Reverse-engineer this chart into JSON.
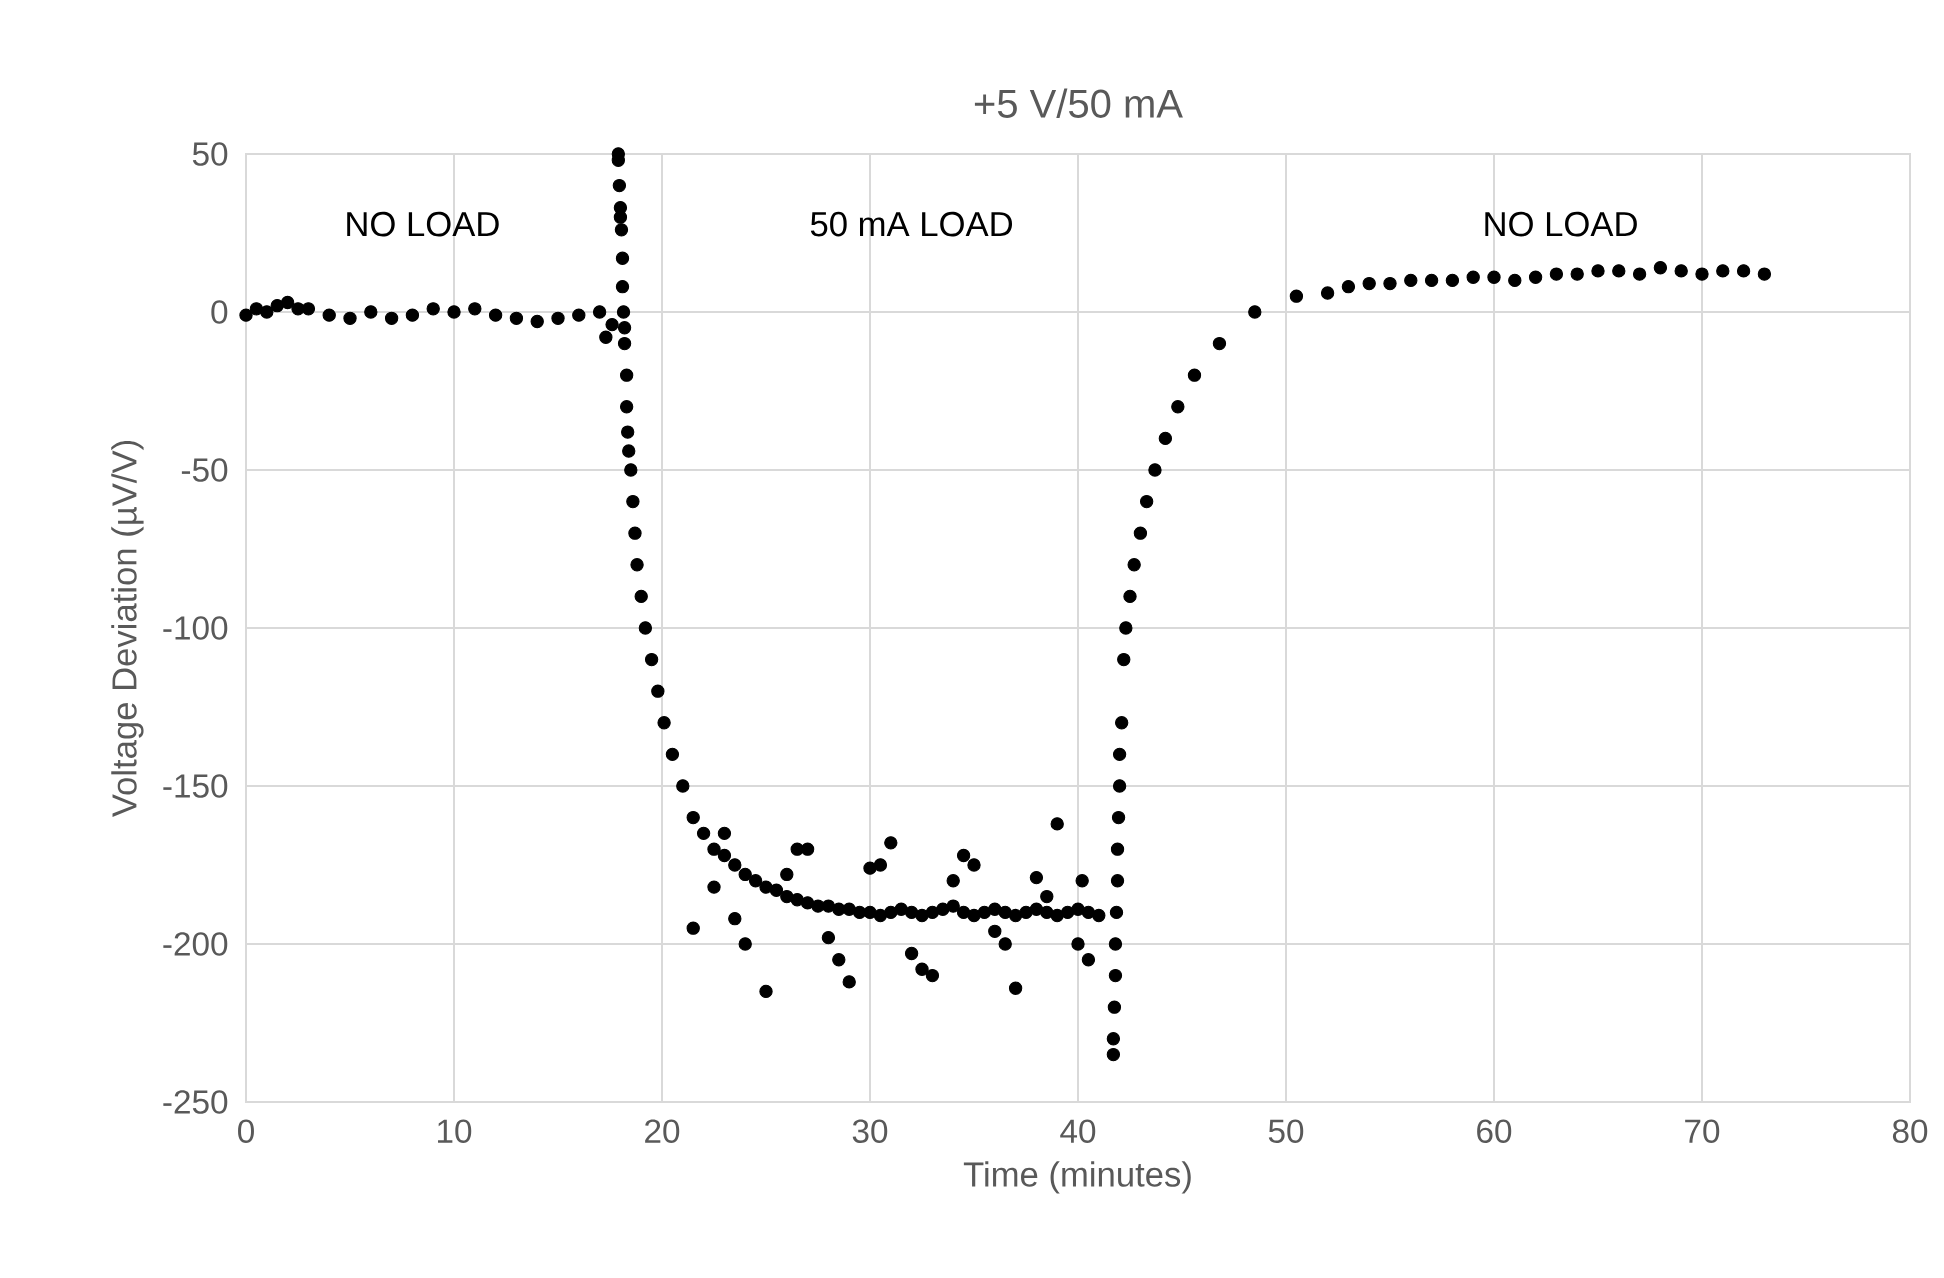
{
  "chart_data": {
    "type": "scatter",
    "title": "+5 V/50 mA",
    "xlabel": "Time (minutes)",
    "ylabel": "Voltage Deviation (µV/V)",
    "x": [
      0,
      0.5,
      1,
      1.5,
      2,
      2.5,
      3,
      4,
      5,
      6,
      7,
      8,
      9,
      10,
      11,
      12,
      13,
      14,
      15,
      16,
      17,
      17.3,
      17.6,
      17.9,
      17.9,
      17.95,
      18.0,
      18.0,
      18.05,
      18.1,
      18.1,
      18.15,
      18.2,
      18.2,
      18.3,
      18.3,
      18.35,
      18.4,
      18.5,
      18.6,
      18.7,
      18.8,
      19.0,
      19.2,
      19.5,
      19.8,
      20.1,
      20.5,
      21.0,
      21.5,
      22,
      22.5,
      23,
      23.5,
      24,
      24.5,
      25,
      25.5,
      26,
      26.5,
      27,
      27.5,
      28,
      28.5,
      29,
      29.5,
      30,
      30.5,
      31,
      31.5,
      32,
      32.5,
      33,
      33.5,
      34,
      34.5,
      35,
      35.5,
      36,
      36.5,
      37,
      37.5,
      38,
      38.5,
      39,
      39.5,
      40,
      40.5,
      41,
      21.5,
      23,
      25,
      27,
      29,
      31,
      33,
      35,
      37,
      39,
      40.5,
      22.5,
      24,
      26,
      28,
      30,
      32,
      34,
      36,
      38,
      40,
      23.5,
      26.5,
      28.5,
      30.5,
      32.5,
      34.5,
      36.5,
      38.5,
      40.2,
      41.7,
      41.7,
      41.75,
      41.8,
      41.8,
      41.85,
      41.9,
      41.9,
      41.95,
      42.0,
      42.0,
      42.1,
      42.2,
      42.3,
      42.5,
      42.7,
      43.0,
      43.3,
      43.7,
      44.2,
      44.8,
      45.6,
      46.8,
      48.5,
      50.5,
      52,
      53,
      54,
      55,
      56,
      57,
      58,
      59,
      60,
      61,
      62,
      63,
      64,
      65,
      66,
      67,
      68,
      69,
      70,
      71,
      72,
      73
    ],
    "values": [
      -1,
      1,
      0,
      2,
      3,
      1,
      1,
      -1,
      -2,
      0,
      -2,
      -1,
      1,
      0,
      1,
      -1,
      -2,
      -3,
      -2,
      -1,
      0,
      -8,
      -4,
      50,
      48,
      40,
      33,
      30,
      26,
      17,
      8,
      0,
      -5,
      -10,
      -20,
      -30,
      -38,
      -44,
      -50,
      -60,
      -70,
      -80,
      -90,
      -100,
      -110,
      -120,
      -130,
      -140,
      -150,
      -160,
      -165,
      -170,
      -172,
      -175,
      -178,
      -180,
      -182,
      -183,
      -185,
      -186,
      -187,
      -188,
      -188,
      -189,
      -189,
      -190,
      -190,
      -191,
      -190,
      -189,
      -190,
      -191,
      -190,
      -189,
      -188,
      -190,
      -191,
      -190,
      -189,
      -190,
      -191,
      -190,
      -189,
      -190,
      -191,
      -190,
      -189,
      -190,
      -191,
      -195,
      -165,
      -215,
      -170,
      -212,
      -168,
      -210,
      -175,
      -214,
      -162,
      -205,
      -182,
      -200,
      -178,
      -198,
      -176,
      -203,
      -180,
      -196,
      -179,
      -200,
      -192,
      -170,
      -205,
      -175,
      -208,
      -172,
      -200,
      -185,
      -180,
      -235,
      -230,
      -220,
      -210,
      -200,
      -190,
      -180,
      -170,
      -160,
      -150,
      -140,
      -130,
      -110,
      -100,
      -90,
      -80,
      -70,
      -60,
      -50,
      -40,
      -30,
      -20,
      -10,
      0,
      5,
      6,
      8,
      9,
      9,
      10,
      10,
      10,
      11,
      11,
      10,
      11,
      12,
      12,
      13,
      13,
      12,
      14,
      13,
      12,
      13,
      13,
      12
    ],
    "color": "#000000",
    "marker": "circle",
    "xlim": [
      0,
      80
    ],
    "xticks": [
      0,
      10,
      20,
      30,
      40,
      50,
      60,
      70,
      80
    ],
    "ylim": [
      -250,
      50
    ],
    "yticks": [
      -250,
      -200,
      -150,
      -100,
      -50,
      0,
      50
    ],
    "grid": true,
    "annotations": [
      "NO LOAD",
      "50 mA LOAD",
      "NO LOAD"
    ]
  }
}
